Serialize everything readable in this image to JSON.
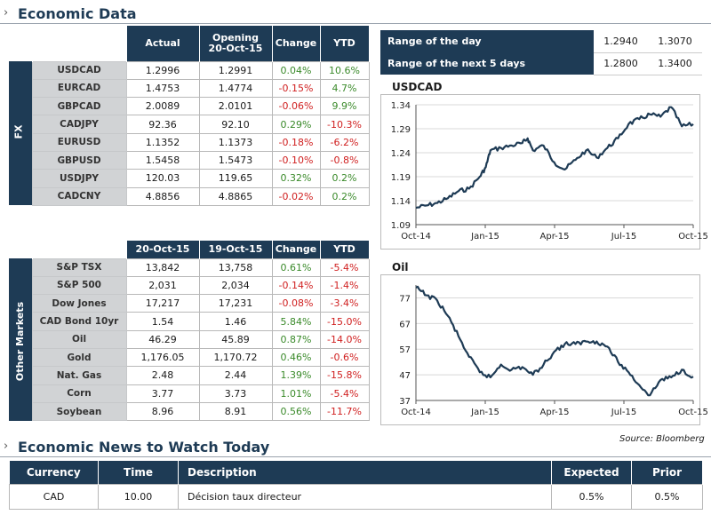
{
  "sections": {
    "economic_data": "Economic Data",
    "news": "Economic News to Watch Today"
  },
  "fx": {
    "side_label": "FX",
    "headers": [
      "Actual",
      "Opening 20-Oct-15",
      "Change",
      "YTD"
    ],
    "rows": [
      {
        "name": "USDCAD",
        "v1": "1.2996",
        "v2": "1.2991",
        "change": "0.04%",
        "ytd": "10.6%"
      },
      {
        "name": "EURCAD",
        "v1": "1.4753",
        "v2": "1.4774",
        "change": "-0.15%",
        "ytd": "4.7%"
      },
      {
        "name": "GBPCAD",
        "v1": "2.0089",
        "v2": "2.0101",
        "change": "-0.06%",
        "ytd": "9.9%"
      },
      {
        "name": "CADJPY",
        "v1": "92.36",
        "v2": "92.10",
        "change": "0.29%",
        "ytd": "-10.3%"
      },
      {
        "name": "EURUSD",
        "v1": "1.1352",
        "v2": "1.1373",
        "change": "-0.18%",
        "ytd": "-6.2%"
      },
      {
        "name": "GBPUSD",
        "v1": "1.5458",
        "v2": "1.5473",
        "change": "-0.10%",
        "ytd": "-0.8%"
      },
      {
        "name": "USDJPY",
        "v1": "120.03",
        "v2": "119.65",
        "change": "0.32%",
        "ytd": "0.2%"
      },
      {
        "name": "CADCNY",
        "v1": "4.8856",
        "v2": "4.8865",
        "change": "-0.02%",
        "ytd": "0.2%"
      }
    ]
  },
  "markets": {
    "side_label": "Other Markets",
    "headers": [
      "20-Oct-15",
      "19-Oct-15",
      "Change",
      "YTD"
    ],
    "rows": [
      {
        "name": "S&P TSX",
        "v1": "13,842",
        "v2": "13,758",
        "change": "0.61%",
        "ytd": "-5.4%"
      },
      {
        "name": "S&P 500",
        "v1": "2,031",
        "v2": "2,034",
        "change": "-0.14%",
        "ytd": "-1.4%"
      },
      {
        "name": "Dow Jones",
        "v1": "17,217",
        "v2": "17,231",
        "change": "-0.08%",
        "ytd": "-3.4%"
      },
      {
        "name": "CAD Bond 10yr",
        "v1": "1.54",
        "v2": "1.46",
        "change": "5.84%",
        "ytd": "-15.0%"
      },
      {
        "name": "Oil",
        "v1": "46.29",
        "v2": "45.89",
        "change": "0.87%",
        "ytd": "-14.0%"
      },
      {
        "name": "Gold",
        "v1": "1,176.05",
        "v2": "1,170.72",
        "change": "0.46%",
        "ytd": "-0.6%"
      },
      {
        "name": "Nat. Gas",
        "v1": "2.48",
        "v2": "2.44",
        "change": "1.39%",
        "ytd": "-15.8%"
      },
      {
        "name": "Corn",
        "v1": "3.77",
        "v2": "3.73",
        "change": "1.01%",
        "ytd": "-5.4%"
      },
      {
        "name": "Soybean",
        "v1": "8.96",
        "v2": "8.91",
        "change": "0.56%",
        "ytd": "-11.7%"
      }
    ]
  },
  "ranges": [
    {
      "label": "Range of the day",
      "low": "1.2940",
      "high": "1.3070"
    },
    {
      "label": "Range of the next 5 days",
      "low": "1.2800",
      "high": "1.3400"
    }
  ],
  "colors": {
    "navy": "#1e3b55",
    "positive": "#3a8a2a",
    "negative": "#d02020",
    "label_bg": "#d1d3d5"
  },
  "chart_data": [
    {
      "type": "line",
      "title": "USDCAD",
      "xlabel": "",
      "ylabel": "",
      "ylim": [
        1.09,
        1.34
      ],
      "yticks": [
        "1.34",
        "1.29",
        "1.24",
        "1.19",
        "1.14",
        "1.09"
      ],
      "xticks": [
        "Oct-14",
        "Jan-15",
        "Apr-15",
        "Jul-15",
        "Oct-15"
      ],
      "grid": true,
      "x": [
        "2014-10-20",
        "2014-11-03",
        "2014-11-17",
        "2014-12-01",
        "2014-12-15",
        "2014-12-29",
        "2015-01-12",
        "2015-01-20",
        "2015-01-26",
        "2015-02-09",
        "2015-02-23",
        "2015-03-09",
        "2015-03-16",
        "2015-03-23",
        "2015-04-06",
        "2015-04-20",
        "2015-05-04",
        "2015-05-18",
        "2015-06-01",
        "2015-06-15",
        "2015-06-29",
        "2015-07-13",
        "2015-07-27",
        "2015-08-10",
        "2015-08-24",
        "2015-09-07",
        "2015-09-21",
        "2015-10-05",
        "2015-10-20"
      ],
      "values": [
        1.125,
        1.13,
        1.135,
        1.145,
        1.16,
        1.165,
        1.19,
        1.21,
        1.245,
        1.25,
        1.255,
        1.26,
        1.27,
        1.245,
        1.255,
        1.22,
        1.205,
        1.225,
        1.245,
        1.23,
        1.25,
        1.27,
        1.3,
        1.31,
        1.32,
        1.315,
        1.335,
        1.295,
        1.2996
      ]
    },
    {
      "type": "line",
      "title": "Oil",
      "xlabel": "",
      "ylabel": "",
      "ylim": [
        37,
        82
      ],
      "yticks": [
        "77",
        "67",
        "57",
        "47",
        "37"
      ],
      "xticks": [
        "Oct-14",
        "Jan-15",
        "Apr-15",
        "Jul-15",
        "Oct-15"
      ],
      "grid": true,
      "x": [
        "2014-10-20",
        "2014-11-03",
        "2014-11-17",
        "2014-12-01",
        "2014-12-15",
        "2014-12-29",
        "2015-01-12",
        "2015-01-26",
        "2015-02-09",
        "2015-02-23",
        "2015-03-09",
        "2015-03-23",
        "2015-04-06",
        "2015-04-20",
        "2015-05-04",
        "2015-05-18",
        "2015-06-01",
        "2015-06-15",
        "2015-06-29",
        "2015-07-13",
        "2015-07-27",
        "2015-08-10",
        "2015-08-24",
        "2015-09-07",
        "2015-09-21",
        "2015-10-05",
        "2015-10-20"
      ],
      "values": [
        81,
        78,
        76,
        70,
        62,
        54,
        48,
        46,
        51,
        49,
        50,
        47,
        51,
        56,
        59,
        59,
        60,
        60,
        58,
        52,
        48,
        43,
        39,
        45,
        46,
        49,
        46.29
      ]
    }
  ],
  "source": "Source: Bloomberg",
  "news": {
    "headers": [
      "Currency",
      "Time",
      "Description",
      "Expected",
      "Prior"
    ],
    "rows": [
      {
        "currency": "CAD",
        "time": "10.00",
        "description": "Décision taux directeur",
        "expected": "0.5%",
        "prior": "0.5%"
      }
    ]
  }
}
